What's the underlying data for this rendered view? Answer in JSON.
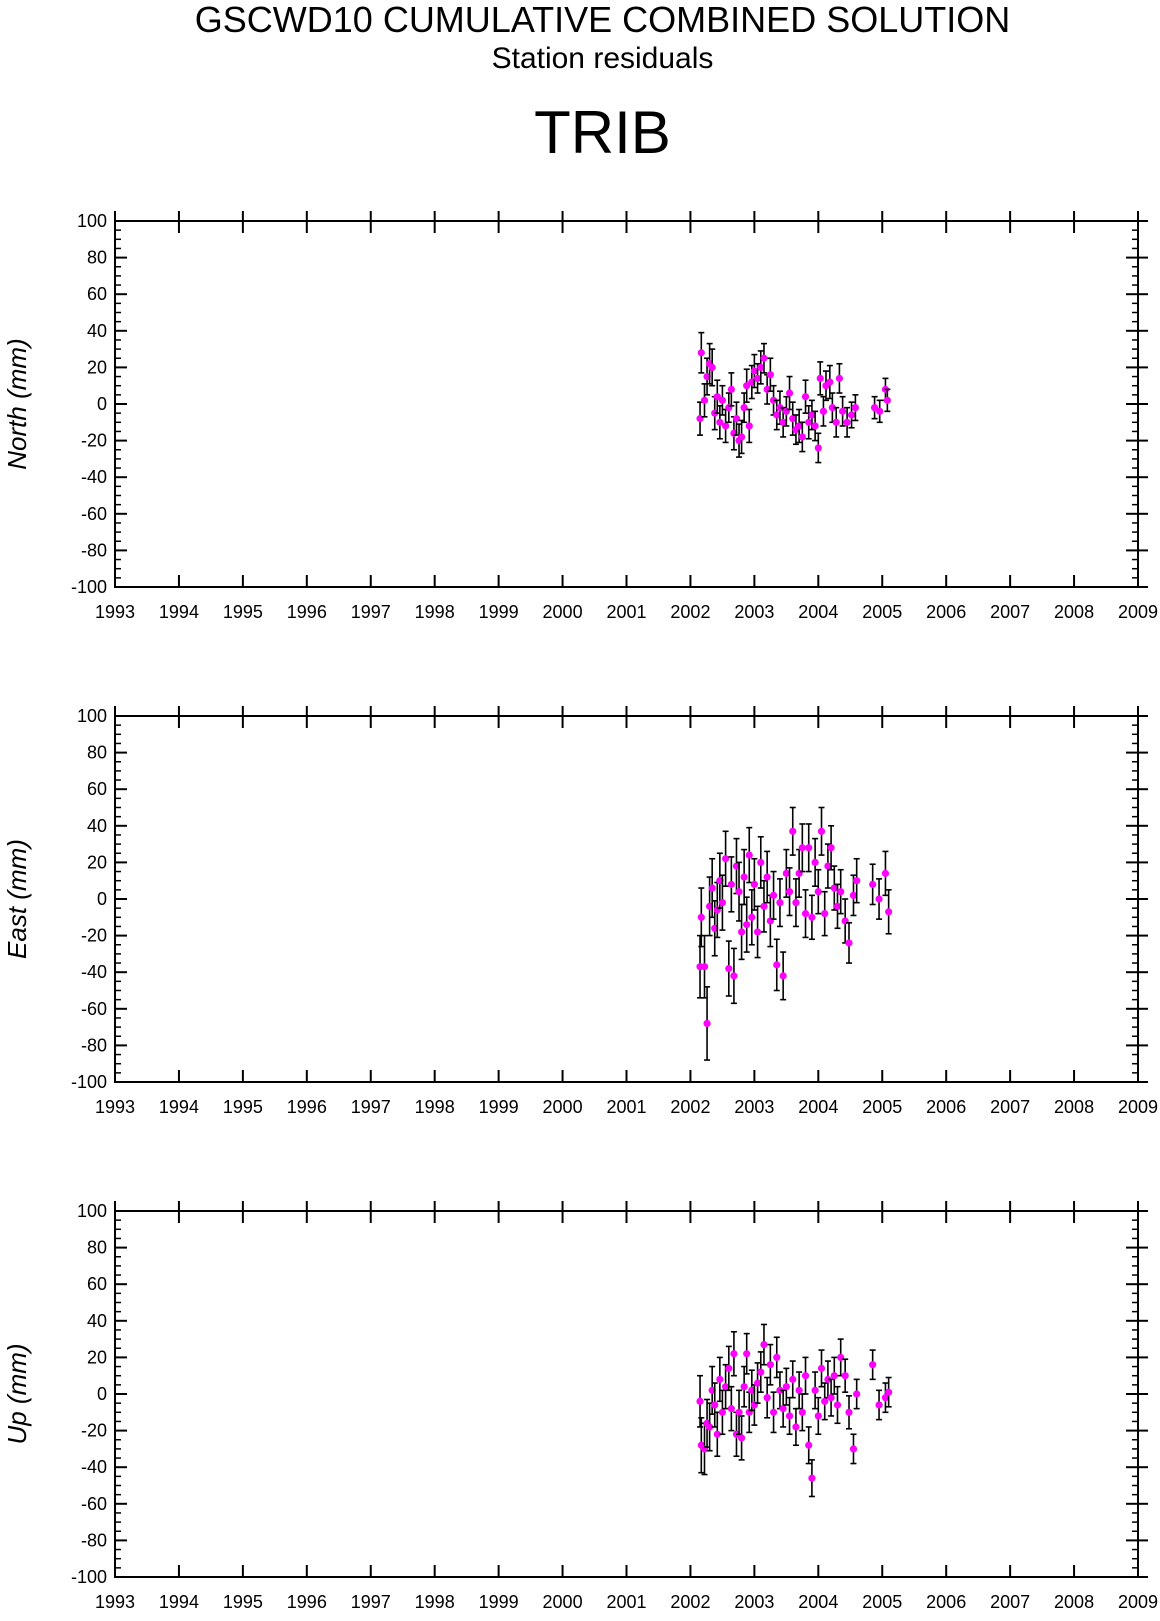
{
  "header": {
    "title": "GSCWD10 CUMULATIVE COMBINED SOLUTION",
    "subtitle": "Station residuals",
    "station": "TRIB"
  },
  "colors": {
    "point": "#ff00ff",
    "errorbar": "#000000",
    "axis": "#000000"
  },
  "chart_data": [
    {
      "type": "scatter",
      "ylabel": "North (mm)",
      "xlim": [
        1993,
        2009
      ],
      "ylim": [
        -100,
        100
      ],
      "xticks": [
        "1993",
        "1994",
        "1995",
        "1996",
        "1997",
        "1998",
        "1999",
        "2000",
        "2001",
        "2002",
        "2003",
        "2004",
        "2005",
        "2006",
        "2007",
        "2008",
        "2009"
      ],
      "yticks": [
        "100",
        "80",
        "60",
        "40",
        "20",
        "0",
        "-20",
        "-40",
        "-60",
        "-80",
        "-100"
      ],
      "error_bars": true,
      "points": [
        {
          "x": 2002.15,
          "y": -8,
          "err": 9
        },
        {
          "x": 2002.17,
          "y": 28,
          "err": 11
        },
        {
          "x": 2002.22,
          "y": 2,
          "err": 9
        },
        {
          "x": 2002.26,
          "y": 15,
          "err": 10
        },
        {
          "x": 2002.3,
          "y": 22,
          "err": 11
        },
        {
          "x": 2002.34,
          "y": 20,
          "err": 10
        },
        {
          "x": 2002.38,
          "y": -5,
          "err": 9
        },
        {
          "x": 2002.42,
          "y": 4,
          "err": 9
        },
        {
          "x": 2002.46,
          "y": -10,
          "err": 9
        },
        {
          "x": 2002.5,
          "y": 2,
          "err": 8
        },
        {
          "x": 2002.55,
          "y": -12,
          "err": 9
        },
        {
          "x": 2002.6,
          "y": -2,
          "err": 8
        },
        {
          "x": 2002.64,
          "y": 8,
          "err": 9
        },
        {
          "x": 2002.68,
          "y": -16,
          "err": 9
        },
        {
          "x": 2002.72,
          "y": -8,
          "err": 9
        },
        {
          "x": 2002.76,
          "y": -20,
          "err": 9
        },
        {
          "x": 2002.8,
          "y": -18,
          "err": 9
        },
        {
          "x": 2002.84,
          "y": -2,
          "err": 8
        },
        {
          "x": 2002.88,
          "y": 10,
          "err": 9
        },
        {
          "x": 2002.92,
          "y": -12,
          "err": 9
        },
        {
          "x": 2002.96,
          "y": 12,
          "err": 9
        },
        {
          "x": 2003.0,
          "y": 18,
          "err": 9
        },
        {
          "x": 2003.05,
          "y": 14,
          "err": 8
        },
        {
          "x": 2003.1,
          "y": 20,
          "err": 9
        },
        {
          "x": 2003.15,
          "y": 25,
          "err": 8
        },
        {
          "x": 2003.2,
          "y": 8,
          "err": 8
        },
        {
          "x": 2003.25,
          "y": 16,
          "err": 9
        },
        {
          "x": 2003.3,
          "y": 2,
          "err": 8
        },
        {
          "x": 2003.35,
          "y": -6,
          "err": 8
        },
        {
          "x": 2003.4,
          "y": -2,
          "err": 9
        },
        {
          "x": 2003.45,
          "y": -10,
          "err": 8
        },
        {
          "x": 2003.5,
          "y": -4,
          "err": 8
        },
        {
          "x": 2003.55,
          "y": 6,
          "err": 9
        },
        {
          "x": 2003.6,
          "y": -8,
          "err": 9
        },
        {
          "x": 2003.65,
          "y": -14,
          "err": 8
        },
        {
          "x": 2003.7,
          "y": -12,
          "err": 9
        },
        {
          "x": 2003.75,
          "y": -18,
          "err": 8
        },
        {
          "x": 2003.8,
          "y": 4,
          "err": 9
        },
        {
          "x": 2003.85,
          "y": -10,
          "err": 9
        },
        {
          "x": 2003.9,
          "y": -6,
          "err": 8
        },
        {
          "x": 2003.95,
          "y": -12,
          "err": 8
        },
        {
          "x": 2004.0,
          "y": -24,
          "err": 8
        },
        {
          "x": 2004.03,
          "y": 14,
          "err": 9
        },
        {
          "x": 2004.08,
          "y": -4,
          "err": 8
        },
        {
          "x": 2004.12,
          "y": 10,
          "err": 8
        },
        {
          "x": 2004.18,
          "y": 12,
          "err": 9
        },
        {
          "x": 2004.22,
          "y": -2,
          "err": 8
        },
        {
          "x": 2004.28,
          "y": -10,
          "err": 8
        },
        {
          "x": 2004.33,
          "y": 14,
          "err": 8
        },
        {
          "x": 2004.38,
          "y": -4,
          "err": 8
        },
        {
          "x": 2004.45,
          "y": -10,
          "err": 8
        },
        {
          "x": 2004.52,
          "y": -6,
          "err": 7
        },
        {
          "x": 2004.58,
          "y": -2,
          "err": 7
        },
        {
          "x": 2004.88,
          "y": -2,
          "err": 6
        },
        {
          "x": 2004.96,
          "y": -4,
          "err": 6
        },
        {
          "x": 2005.05,
          "y": 8,
          "err": 6
        },
        {
          "x": 2005.08,
          "y": 2,
          "err": 6
        }
      ]
    },
    {
      "type": "scatter",
      "ylabel": "East (mm)",
      "xlim": [
        1993,
        2009
      ],
      "ylim": [
        -100,
        100
      ],
      "xticks": [
        "1993",
        "1994",
        "1995",
        "1996",
        "1997",
        "1998",
        "1999",
        "2000",
        "2001",
        "2002",
        "2003",
        "2004",
        "2005",
        "2006",
        "2007",
        "2008",
        "2009"
      ],
      "yticks": [
        "100",
        "80",
        "60",
        "40",
        "20",
        "0",
        "-20",
        "-40",
        "-60",
        "-80",
        "-100"
      ],
      "error_bars": true,
      "points": [
        {
          "x": 2002.15,
          "y": -37,
          "err": 17
        },
        {
          "x": 2002.17,
          "y": -10,
          "err": 16
        },
        {
          "x": 2002.22,
          "y": -37,
          "err": 17
        },
        {
          "x": 2002.26,
          "y": -68,
          "err": 20
        },
        {
          "x": 2002.3,
          "y": -4,
          "err": 16
        },
        {
          "x": 2002.34,
          "y": 6,
          "err": 16
        },
        {
          "x": 2002.38,
          "y": -16,
          "err": 15
        },
        {
          "x": 2002.42,
          "y": -6,
          "err": 15
        },
        {
          "x": 2002.46,
          "y": 10,
          "err": 15
        },
        {
          "x": 2002.5,
          "y": -2,
          "err": 15
        },
        {
          "x": 2002.55,
          "y": 22,
          "err": 15
        },
        {
          "x": 2002.6,
          "y": -38,
          "err": 15
        },
        {
          "x": 2002.64,
          "y": 8,
          "err": 15
        },
        {
          "x": 2002.68,
          "y": -42,
          "err": 15
        },
        {
          "x": 2002.72,
          "y": 18,
          "err": 15
        },
        {
          "x": 2002.76,
          "y": 4,
          "err": 16
        },
        {
          "x": 2002.8,
          "y": -18,
          "err": 15
        },
        {
          "x": 2002.84,
          "y": 12,
          "err": 15
        },
        {
          "x": 2002.88,
          "y": -14,
          "err": 15
        },
        {
          "x": 2002.92,
          "y": 24,
          "err": 15
        },
        {
          "x": 2002.96,
          "y": -10,
          "err": 15
        },
        {
          "x": 2003.0,
          "y": 8,
          "err": 14
        },
        {
          "x": 2003.05,
          "y": -18,
          "err": 14
        },
        {
          "x": 2003.1,
          "y": 20,
          "err": 14
        },
        {
          "x": 2003.15,
          "y": -4,
          "err": 14
        },
        {
          "x": 2003.2,
          "y": 12,
          "err": 14
        },
        {
          "x": 2003.25,
          "y": -12,
          "err": 14
        },
        {
          "x": 2003.3,
          "y": 2,
          "err": 13
        },
        {
          "x": 2003.35,
          "y": -36,
          "err": 14
        },
        {
          "x": 2003.4,
          "y": -2,
          "err": 13
        },
        {
          "x": 2003.45,
          "y": -42,
          "err": 13
        },
        {
          "x": 2003.5,
          "y": 14,
          "err": 13
        },
        {
          "x": 2003.55,
          "y": 4,
          "err": 13
        },
        {
          "x": 2003.6,
          "y": 37,
          "err": 13
        },
        {
          "x": 2003.65,
          "y": -2,
          "err": 13
        },
        {
          "x": 2003.7,
          "y": 14,
          "err": 13
        },
        {
          "x": 2003.75,
          "y": 28,
          "err": 13
        },
        {
          "x": 2003.8,
          "y": -8,
          "err": 13
        },
        {
          "x": 2003.85,
          "y": 28,
          "err": 13
        },
        {
          "x": 2003.9,
          "y": -10,
          "err": 12
        },
        {
          "x": 2003.95,
          "y": 20,
          "err": 13
        },
        {
          "x": 2004.0,
          "y": 4,
          "err": 12
        },
        {
          "x": 2004.05,
          "y": 37,
          "err": 13
        },
        {
          "x": 2004.1,
          "y": -8,
          "err": 12
        },
        {
          "x": 2004.15,
          "y": 18,
          "err": 12
        },
        {
          "x": 2004.2,
          "y": 28,
          "err": 12
        },
        {
          "x": 2004.25,
          "y": 6,
          "err": 12
        },
        {
          "x": 2004.3,
          "y": -4,
          "err": 12
        },
        {
          "x": 2004.35,
          "y": 4,
          "err": 12
        },
        {
          "x": 2004.42,
          "y": -12,
          "err": 12
        },
        {
          "x": 2004.48,
          "y": -24,
          "err": 11
        },
        {
          "x": 2004.55,
          "y": 2,
          "err": 11
        },
        {
          "x": 2004.6,
          "y": 10,
          "err": 12
        },
        {
          "x": 2004.85,
          "y": 8,
          "err": 11
        },
        {
          "x": 2004.95,
          "y": 0,
          "err": 11
        },
        {
          "x": 2005.05,
          "y": 14,
          "err": 12
        },
        {
          "x": 2005.1,
          "y": -7,
          "err": 12
        }
      ]
    },
    {
      "type": "scatter",
      "ylabel": "Up (mm)",
      "xlim": [
        1993,
        2009
      ],
      "ylim": [
        -100,
        100
      ],
      "xticks": [
        "1993",
        "1994",
        "1995",
        "1996",
        "1997",
        "1998",
        "1999",
        "2000",
        "2001",
        "2002",
        "2003",
        "2004",
        "2005",
        "2006",
        "2007",
        "2008",
        "2009"
      ],
      "yticks": [
        "100",
        "80",
        "60",
        "40",
        "20",
        "0",
        "-20",
        "-40",
        "-60",
        "-80",
        "-100"
      ],
      "error_bars": true,
      "points": [
        {
          "x": 2002.15,
          "y": -4,
          "err": 14
        },
        {
          "x": 2002.17,
          "y": -28,
          "err": 15
        },
        {
          "x": 2002.22,
          "y": -30,
          "err": 14
        },
        {
          "x": 2002.26,
          "y": -16,
          "err": 13
        },
        {
          "x": 2002.3,
          "y": -18,
          "err": 13
        },
        {
          "x": 2002.34,
          "y": 2,
          "err": 13
        },
        {
          "x": 2002.38,
          "y": -6,
          "err": 12
        },
        {
          "x": 2002.42,
          "y": -22,
          "err": 12
        },
        {
          "x": 2002.46,
          "y": 8,
          "err": 12
        },
        {
          "x": 2002.5,
          "y": -10,
          "err": 12
        },
        {
          "x": 2002.55,
          "y": 4,
          "err": 12
        },
        {
          "x": 2002.6,
          "y": 14,
          "err": 12
        },
        {
          "x": 2002.64,
          "y": -8,
          "err": 12
        },
        {
          "x": 2002.68,
          "y": 22,
          "err": 12
        },
        {
          "x": 2002.72,
          "y": -22,
          "err": 12
        },
        {
          "x": 2002.76,
          "y": -10,
          "err": 12
        },
        {
          "x": 2002.8,
          "y": -24,
          "err": 12
        },
        {
          "x": 2002.84,
          "y": 4,
          "err": 11
        },
        {
          "x": 2002.88,
          "y": 22,
          "err": 11
        },
        {
          "x": 2002.92,
          "y": -10,
          "err": 11
        },
        {
          "x": 2002.96,
          "y": 2,
          "err": 11
        },
        {
          "x": 2003.0,
          "y": -6,
          "err": 11
        },
        {
          "x": 2003.05,
          "y": 6,
          "err": 11
        },
        {
          "x": 2003.1,
          "y": 12,
          "err": 11
        },
        {
          "x": 2003.15,
          "y": 27,
          "err": 11
        },
        {
          "x": 2003.2,
          "y": -2,
          "err": 11
        },
        {
          "x": 2003.25,
          "y": 16,
          "err": 11
        },
        {
          "x": 2003.3,
          "y": -10,
          "err": 11
        },
        {
          "x": 2003.35,
          "y": 20,
          "err": 11
        },
        {
          "x": 2003.4,
          "y": 2,
          "err": 10
        },
        {
          "x": 2003.45,
          "y": -8,
          "err": 10
        },
        {
          "x": 2003.5,
          "y": 4,
          "err": 10
        },
        {
          "x": 2003.55,
          "y": -12,
          "err": 10
        },
        {
          "x": 2003.6,
          "y": 8,
          "err": 10
        },
        {
          "x": 2003.65,
          "y": -18,
          "err": 10
        },
        {
          "x": 2003.7,
          "y": 2,
          "err": 10
        },
        {
          "x": 2003.75,
          "y": -10,
          "err": 10
        },
        {
          "x": 2003.8,
          "y": 10,
          "err": 10
        },
        {
          "x": 2003.85,
          "y": -28,
          "err": 10
        },
        {
          "x": 2003.9,
          "y": -46,
          "err": 10
        },
        {
          "x": 2003.95,
          "y": 2,
          "err": 10
        },
        {
          "x": 2004.0,
          "y": -12,
          "err": 10
        },
        {
          "x": 2004.05,
          "y": 14,
          "err": 10
        },
        {
          "x": 2004.1,
          "y": -4,
          "err": 10
        },
        {
          "x": 2004.15,
          "y": 8,
          "err": 10
        },
        {
          "x": 2004.2,
          "y": -2,
          "err": 10
        },
        {
          "x": 2004.25,
          "y": 10,
          "err": 10
        },
        {
          "x": 2004.3,
          "y": -6,
          "err": 10
        },
        {
          "x": 2004.35,
          "y": 20,
          "err": 10
        },
        {
          "x": 2004.42,
          "y": 10,
          "err": 9
        },
        {
          "x": 2004.48,
          "y": -10,
          "err": 9
        },
        {
          "x": 2004.55,
          "y": -30,
          "err": 8
        },
        {
          "x": 2004.6,
          "y": 0,
          "err": 8
        },
        {
          "x": 2004.85,
          "y": 16,
          "err": 8
        },
        {
          "x": 2004.95,
          "y": -6,
          "err": 8
        },
        {
          "x": 2005.05,
          "y": -2,
          "err": 8
        },
        {
          "x": 2005.1,
          "y": 1,
          "err": 8
        }
      ]
    }
  ]
}
